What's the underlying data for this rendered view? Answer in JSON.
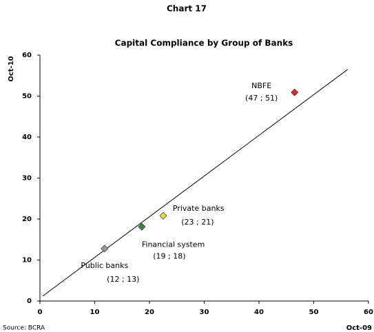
{
  "chart_data": {
    "type": "scatter",
    "title": "Chart 17",
    "subtitle": "Capital Compliance by Group of Banks",
    "x_label": "Oct-09",
    "y_label": "Oct-10",
    "source": "Source: BCRA",
    "series": [
      {
        "name": "Public banks",
        "color": "#9a9a9a",
        "x": [
          11.8
        ],
        "values": [
          12.8
        ],
        "value_labels": [
          "(12 ; 13)"
        ]
      },
      {
        "name": "Financial system",
        "color": "#2e8b3e",
        "x": [
          18.6
        ],
        "values": [
          18.1
        ],
        "value_labels": [
          "(19 ; 18)"
        ]
      },
      {
        "name": "Private banks",
        "color": "#f2d633",
        "x": [
          22.5
        ],
        "values": [
          20.8
        ],
        "value_labels": [
          "(23 ; 21)"
        ]
      },
      {
        "name": "NBFE",
        "color": "#e0262b",
        "x": [
          46.5
        ],
        "values": [
          50.9
        ],
        "value_labels": [
          "(47 ; 51)"
        ]
      }
    ],
    "reference_line": {
      "x": [
        0.5,
        56.2
      ],
      "y": [
        1.2,
        56.5
      ]
    },
    "xlim": [
      0,
      60
    ],
    "xticks": [
      0,
      10,
      20,
      30,
      40,
      50,
      60
    ],
    "ylim": [
      0,
      60
    ],
    "yticks": [
      0,
      10,
      20,
      30,
      40,
      50,
      60
    ]
  }
}
